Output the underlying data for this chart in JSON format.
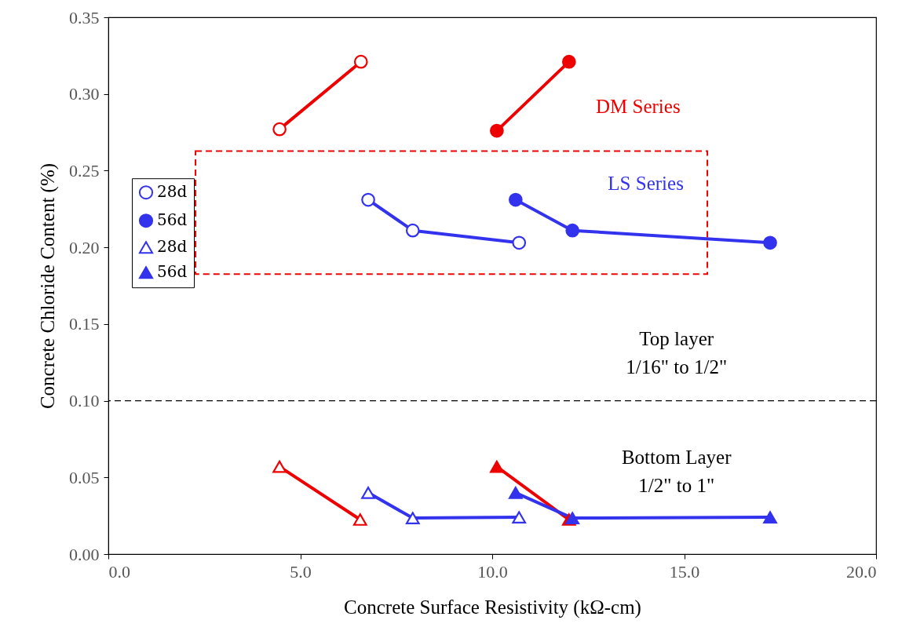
{
  "chart_data": {
    "type": "line",
    "xlabel": "Concrete Surface Resistivity (kΩ-cm)",
    "ylabel": "Concrete Chloride Content (%)",
    "xlim": [
      0,
      20
    ],
    "xticks": [
      {
        "value": 0,
        "label": "0.0"
      },
      {
        "value": 5,
        "label": "5.0"
      },
      {
        "value": 10,
        "label": "10.0"
      },
      {
        "value": 15,
        "label": "15.0"
      },
      {
        "value": 20,
        "label": "20.0"
      }
    ],
    "ylim": [
      0,
      0.35
    ],
    "yticks": [
      {
        "value": 0,
        "label": "0.00"
      },
      {
        "value": 0.05,
        "label": "0.05"
      },
      {
        "value": 0.1,
        "label": "0.10"
      },
      {
        "value": 0.15,
        "label": "0.15"
      },
      {
        "value": 0.2,
        "label": "0.20"
      },
      {
        "value": 0.25,
        "label": "0.25"
      },
      {
        "value": 0.3,
        "label": "0.30"
      },
      {
        "value": 0.35,
        "label": "0.35"
      }
    ],
    "grid": false,
    "legend": "left",
    "line_style": "solid",
    "series": [
      {
        "color": "#ee0000",
        "marker": "circle",
        "x": [
          4.46,
          6.58
        ],
        "values": [
          0.277,
          0.321
        ]
      },
      {
        "color": "#ee0000",
        "marker": "circle",
        "x": [
          10.12,
          12.0
        ],
        "values": [
          0.276,
          0.321
        ]
      },
      {
        "name": "28d",
        "color": "#3333ee",
        "marker": "circle",
        "x": [
          6.77,
          7.93,
          10.7
        ],
        "values": [
          0.231,
          0.211,
          0.203
        ]
      },
      {
        "name": "56d",
        "color": "#3333ee",
        "marker": "circle",
        "x": [
          10.61,
          12.09,
          17.24
        ],
        "values": [
          0.231,
          0.211,
          0.203
        ]
      },
      {
        "color": "#ee0000",
        "marker": "triangle",
        "x": [
          4.46,
          6.56
        ],
        "values": [
          0.057,
          0.0225
        ]
      },
      {
        "color": "#ee0000",
        "marker": "triangle",
        "x": [
          10.12,
          12.0
        ],
        "values": [
          0.057,
          0.0225
        ]
      },
      {
        "name": "28d",
        "color": "#3333ee",
        "marker": "triangle",
        "x": [
          6.77,
          7.93,
          10.7
        ],
        "values": [
          0.04,
          0.0235,
          0.024
        ]
      },
      {
        "name": "56d",
        "color": "#3333ee",
        "marker": "triangle",
        "x": [
          10.61,
          12.09,
          17.24
        ],
        "values": [
          0.04,
          0.0235,
          0.024
        ]
      }
    ],
    "ref_lines": [
      {
        "axis": "y",
        "value": 0.1,
        "color": "#000000",
        "line_style": "dashed"
      }
    ],
    "annotations": [
      "DM Series",
      "LS Series",
      "Top layer\n1/16\" to 1/2\"",
      "Bottom Layer\n1/2\" to 1\""
    ]
  }
}
